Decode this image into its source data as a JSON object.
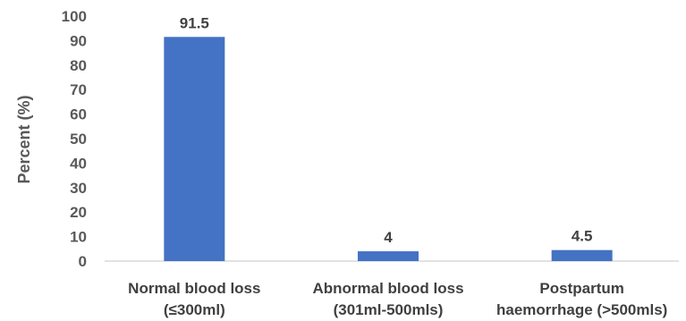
{
  "chart_data": {
    "type": "bar",
    "categories": [
      [
        "Normal blood loss",
        "(≤300ml)"
      ],
      [
        "Abnormal blood loss",
        "(301ml-500mls)"
      ],
      [
        "Postpartum",
        "haemorrhage (>500mls)"
      ]
    ],
    "values": [
      91.5,
      4,
      4.5
    ],
    "data_labels": [
      "91.5",
      "4",
      "4.5"
    ],
    "title": "",
    "xlabel": "",
    "ylabel": "Percent (%)",
    "ylim": [
      0,
      100
    ],
    "yticks": [
      0,
      10,
      20,
      30,
      40,
      50,
      60,
      70,
      80,
      90,
      100
    ],
    "grid": false,
    "bar_color": "#4472C4",
    "axis_color": "#D9D9D9"
  }
}
